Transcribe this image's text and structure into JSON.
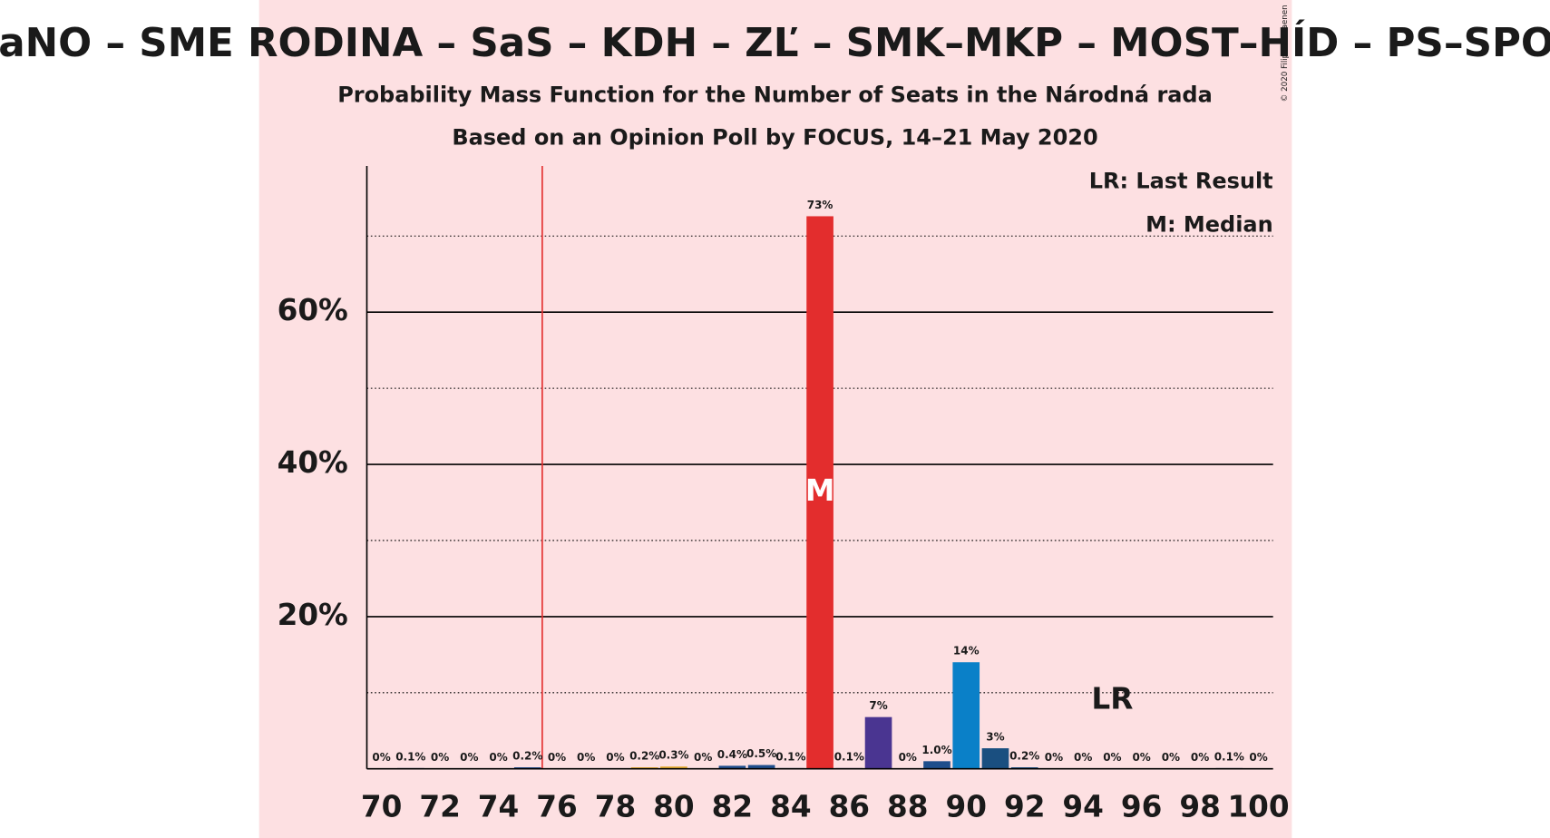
{
  "chart_data": {
    "type": "bar",
    "title": "OĽaNO – SME RODINA – SaS – KDH – ZĽ – SMK–MKP – MOST–HÍD – PS–SPOLU",
    "subtitle": "Probability Mass Function for the Number of Seats in the Národná rada",
    "subtitle2": "Based on an Opinion Poll by FOCUS, 14–21 May 2020",
    "copyright": "© 2020 Filip van Laenen",
    "legend": [
      "LR: Last Result",
      "M: Median"
    ],
    "x": [
      70,
      71,
      72,
      73,
      74,
      75,
      76,
      77,
      78,
      79,
      80,
      81,
      82,
      83,
      84,
      85,
      86,
      87,
      88,
      89,
      90,
      91,
      92,
      93,
      94,
      95,
      96,
      97,
      98,
      99,
      100
    ],
    "values": [
      0,
      0.1,
      0,
      0,
      0,
      0.2,
      0,
      0,
      0,
      0.2,
      0.3,
      0,
      0.4,
      0.5,
      0.1,
      72.6,
      0.1,
      6.8,
      0,
      1.0,
      14.0,
      2.7,
      0.2,
      0,
      0,
      0,
      0,
      0,
      0,
      0.1,
      0
    ],
    "value_labels": [
      "0%",
      "0.1%",
      "0%",
      "0%",
      "0%",
      "0.2%",
      "0%",
      "0%",
      "0%",
      "0.2%",
      "0.3%",
      "0%",
      "0.4%",
      "0.5%",
      "0.1%",
      "73%",
      "0.1%",
      "7%",
      "0%",
      "1.0%",
      "14%",
      "3%",
      "0.2%",
      "0%",
      "0%",
      "0%",
      "0%",
      "0%",
      "0%",
      "0.1%",
      "0%"
    ],
    "colors": [
      "#1f4e8c",
      "#1f4e8c",
      "#1f4e8c",
      "#1f4e8c",
      "#1f4e8c",
      "#1f4e8c",
      "#1f4e8c",
      "#1f4e8c",
      "#1f4e8c",
      "#e3a82d",
      "#e3a82d",
      "#1f4e8c",
      "#1f4e8c",
      "#1f4e8c",
      "#1f4e8c",
      "#e32d2d",
      "#4a3591",
      "#4a3591",
      "#1f4e8c",
      "#1f4e8c",
      "#0a80c8",
      "#1a4f80",
      "#1a4f80",
      "#1a4f80",
      "#1a4f80",
      "#1a4f80",
      "#1a4f80",
      "#1a4f80",
      "#1a4f80",
      "#1a4f80",
      "#1a4f80"
    ],
    "xlim": [
      69.5,
      100.5
    ],
    "xticks": [
      70,
      72,
      74,
      76,
      78,
      80,
      82,
      84,
      86,
      88,
      90,
      92,
      94,
      96,
      98,
      100
    ],
    "ylim": [
      0,
      79.2
    ],
    "yticks": [
      {
        "value": 20,
        "label": "20%"
      },
      {
        "value": 40,
        "label": "40%"
      },
      {
        "value": 60,
        "label": "60%"
      }
    ],
    "minor_yticks": [
      10,
      30,
      50,
      70
    ],
    "threshold_line": 75.5,
    "threshold_color": "#e32d2d",
    "last_result": {
      "x": 95,
      "label": "LR"
    },
    "median": {
      "x": 85,
      "label": "M"
    }
  }
}
